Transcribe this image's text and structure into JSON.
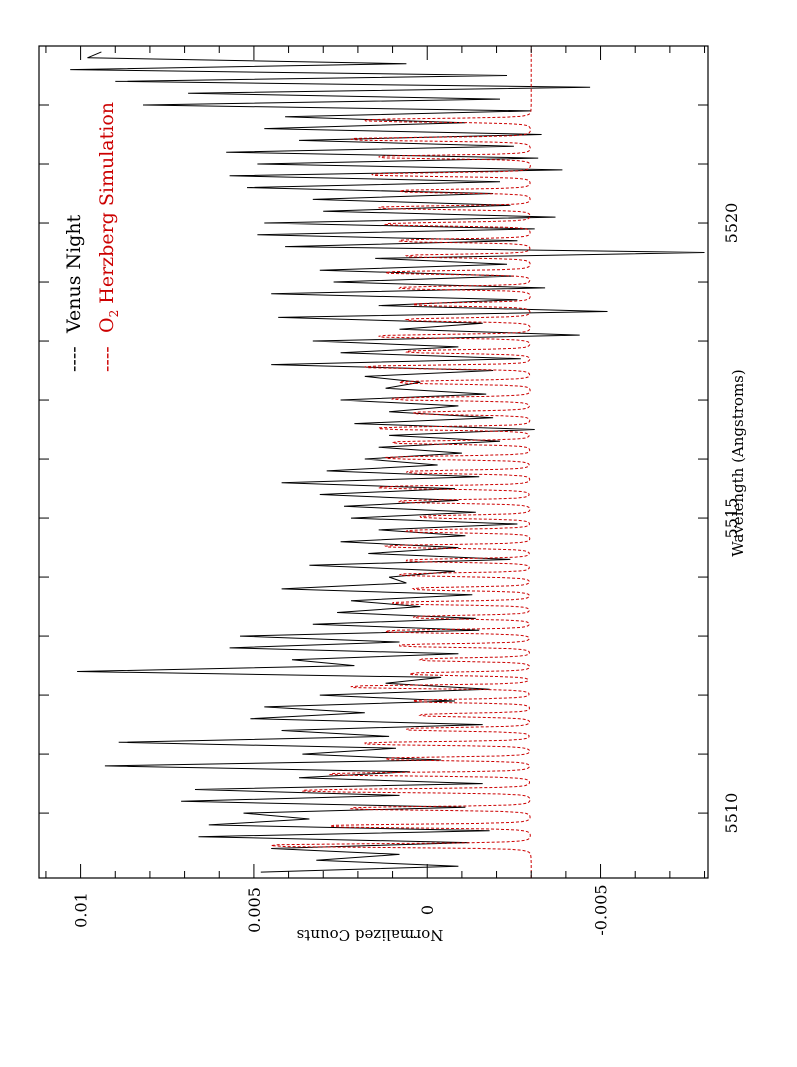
{
  "chart_data": {
    "type": "line",
    "orientation": "rotated-90-clockwise",
    "xlabel": "Wavelength (Angstroms)",
    "ylabel": "Normalized Counts",
    "xlim": [
      5508.9,
      5523.0
    ],
    "ylim": [
      -0.0081,
      0.0112
    ],
    "xticks_labeled": [
      "5510",
      "5515",
      "5520"
    ],
    "xticks_values": [
      5510,
      5515,
      5520
    ],
    "x_minor_ticks": [
      5510,
      5511,
      5512,
      5513,
      5514,
      5515,
      5516,
      5517,
      5518,
      5519,
      5520,
      5521,
      5522
    ],
    "yticks_labeled": [
      "0.01",
      "0.005",
      "0",
      "-0.005"
    ],
    "yticks_values": [
      0.01,
      0.005,
      0,
      -0.005
    ],
    "legend": {
      "placement": "top-right",
      "entries": [
        {
          "marker": "----",
          "label": "Venus Night",
          "color": "#000000"
        },
        {
          "marker": "----",
          "label_main": "O",
          "label_sub": "2",
          "label_rest": " Herzberg Simulation",
          "color": "#cc0000"
        }
      ]
    },
    "series": [
      {
        "name": "Venus Night",
        "color": "#000000",
        "style": "solid",
        "x": [
          5509.0,
          5509.1,
          5509.2,
          5509.3,
          5509.4,
          5509.5,
          5509.6,
          5509.7,
          5509.8,
          5509.9,
          5510.0,
          5510.1,
          5510.2,
          5510.3,
          5510.4,
          5510.5,
          5510.6,
          5510.7,
          5510.8,
          5510.9,
          5511.0,
          5511.1,
          5511.2,
          5511.3,
          5511.4,
          5511.5,
          5511.6,
          5511.7,
          5511.8,
          5511.9,
          5512.0,
          5512.1,
          5512.2,
          5512.3,
          5512.4,
          5512.5,
          5512.6,
          5512.7,
          5512.8,
          5512.9,
          5513.0,
          5513.1,
          5513.2,
          5513.3,
          5513.4,
          5513.5,
          5513.6,
          5513.7,
          5513.8,
          5513.9,
          5514.0,
          5514.1,
          5514.2,
          5514.3,
          5514.4,
          5514.5,
          5514.6,
          5514.7,
          5514.8,
          5514.9,
          5515.0,
          5515.1,
          5515.2,
          5515.3,
          5515.4,
          5515.5,
          5515.6,
          5515.7,
          5515.8,
          5515.9,
          5516.0,
          5516.1,
          5516.2,
          5516.3,
          5516.4,
          5516.5,
          5516.6,
          5516.7,
          5516.8,
          5516.9,
          5517.0,
          5517.1,
          5517.2,
          5517.3,
          5517.4,
          5517.5,
          5517.6,
          5517.7,
          5517.8,
          5517.9,
          5518.0,
          5518.1,
          5518.2,
          5518.3,
          5518.4,
          5518.5,
          5518.6,
          5518.7,
          5518.8,
          5518.9,
          5519.0,
          5519.1,
          5519.2,
          5519.3,
          5519.4,
          5519.5,
          5519.6,
          5519.7,
          5519.8,
          5519.9,
          5520.0,
          5520.1,
          5520.2,
          5520.3,
          5520.4,
          5520.5,
          5520.6,
          5520.7,
          5520.8,
          5520.9,
          5521.0,
          5521.1,
          5521.2,
          5521.3,
          5521.4,
          5521.5,
          5521.6,
          5521.7,
          5521.8,
          5521.9,
          5522.0,
          5522.1,
          5522.2,
          5522.3,
          5522.4,
          5522.5,
          5522.6,
          5522.7,
          5522.8,
          5522.9
        ],
        "y": [
          0.0048,
          -0.0009,
          0.0032,
          0.0008,
          0.0045,
          -0.0012,
          0.0066,
          -0.0018,
          0.0063,
          0.0034,
          0.0053,
          -0.0011,
          0.0071,
          0.0008,
          0.0067,
          -0.0016,
          0.0037,
          0.0005,
          0.0093,
          -0.0004,
          0.0036,
          0.0009,
          0.0089,
          0.0011,
          0.0042,
          -0.0016,
          0.0051,
          0.0018,
          0.0047,
          -0.0008,
          0.0031,
          -0.0018,
          0.0012,
          -0.0004,
          0.0101,
          0.0021,
          0.0039,
          -0.0009,
          0.0057,
          0.0008,
          0.0054,
          -0.0015,
          0.0033,
          -0.0014,
          0.0026,
          0.0002,
          0.0022,
          -0.0013,
          0.0042,
          0.0006,
          0.0011,
          -0.0008,
          0.0034,
          -0.0024,
          0.0017,
          -0.0009,
          0.0025,
          -0.0011,
          0.0014,
          -0.0026,
          0.0022,
          -0.0014,
          0.0024,
          -0.0009,
          0.0031,
          -0.0008,
          0.0042,
          -0.0015,
          0.0029,
          -0.0003,
          0.0018,
          -0.001,
          0.0014,
          -0.0021,
          0.0011,
          -0.0031,
          0.0021,
          -0.0019,
          0.0011,
          -0.0009,
          0.0025,
          -0.0017,
          0.0012,
          0.0002,
          0.0018,
          -0.0019,
          0.0045,
          -0.0027,
          0.0025,
          -0.0009,
          0.0033,
          -0.0044,
          0.0008,
          -0.0016,
          0.0043,
          -0.0052,
          0.0014,
          -0.0026,
          0.0045,
          -0.0034,
          0.0027,
          -0.0025,
          0.0031,
          -0.0023,
          0.0015,
          -0.008,
          0.0041,
          -0.0026,
          0.0049,
          -0.0031,
          0.0047,
          -0.0037,
          0.003,
          -0.0024,
          0.0033,
          -0.0019,
          0.0052,
          -0.0021,
          0.0057,
          -0.0039,
          0.0049,
          -0.0032,
          0.0058,
          -0.0025,
          0.0037,
          -0.0033,
          0.0047,
          -0.0011,
          0.0041,
          -0.003,
          0.0082,
          -0.0021,
          0.0069,
          -0.0047,
          0.009,
          -0.0023,
          0.0103,
          0.0006,
          0.0098,
          0.0094
        ]
      },
      {
        "name": "O2 Herzberg Simulation",
        "color": "#cc0000",
        "style": "dashed",
        "baseline": -0.003,
        "line_positions": [
          5509.45,
          5509.78,
          5510.08,
          5510.38,
          5510.66,
          5510.92,
          5511.18,
          5511.42,
          5511.66,
          5511.9,
          5512.14,
          5512.36,
          5512.6,
          5512.84,
          5513.08,
          5513.32,
          5513.56,
          5513.8,
          5514.04,
          5514.28,
          5514.52,
          5514.78,
          5515.02,
          5515.28,
          5515.52,
          5515.78,
          5516.02,
          5516.28,
          5516.52,
          5516.78,
          5517.02,
          5517.3,
          5517.56,
          5517.82,
          5518.08,
          5518.36,
          5518.62,
          5518.9,
          5519.16,
          5519.44,
          5519.7,
          5519.98,
          5520.26,
          5520.54,
          5520.82,
          5521.12,
          5521.42,
          5521.74
        ],
        "line_peaks": [
          0.0045,
          0.0028,
          0.0022,
          0.0036,
          0.0028,
          0.0012,
          0.0018,
          0.0006,
          0.0002,
          0.0004,
          0.0022,
          0.0005,
          0.0002,
          0.0008,
          0.0012,
          0.0004,
          0.001,
          0.0004,
          0.0008,
          0.0006,
          0.0012,
          0.0006,
          0.0002,
          0.0008,
          0.0014,
          0.0006,
          0.0012,
          0.001,
          0.0014,
          0.0004,
          0.001,
          0.0008,
          0.0018,
          0.0006,
          0.0014,
          0.0006,
          0.0004,
          0.0008,
          0.0012,
          0.0006,
          0.0008,
          0.0012,
          0.0014,
          0.0008,
          0.0016,
          0.0014,
          0.0022,
          0.0018
        ]
      }
    ]
  }
}
